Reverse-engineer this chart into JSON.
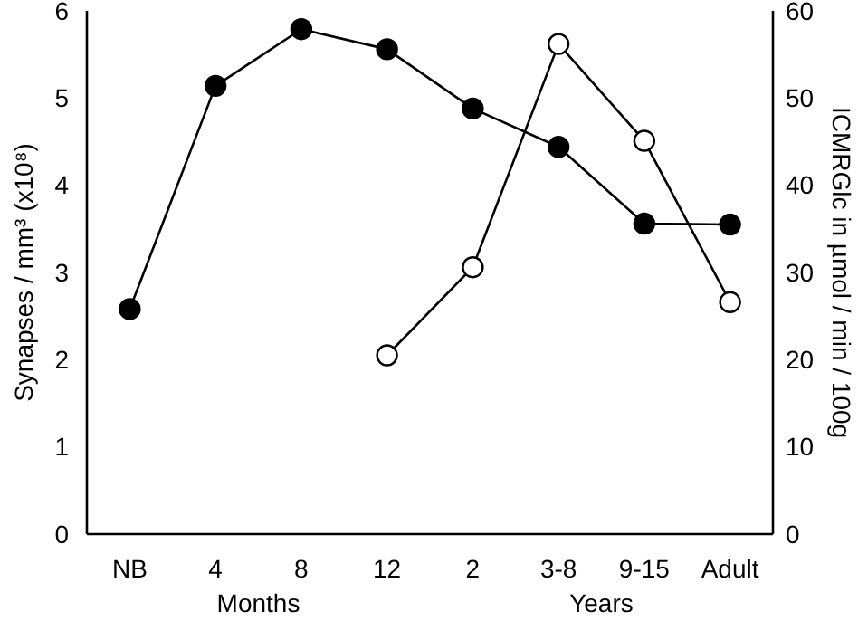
{
  "chart_data": {
    "type": "line",
    "categories": [
      "NB",
      "4",
      "8",
      "12",
      "2",
      "3-8",
      "9-15",
      "Adult"
    ],
    "ylabel": "Synapses / mm³ (x10⁸)",
    "y2label": "ICMRGlc in µmol / min / 100g",
    "annotations": [
      "Months",
      "Years"
    ],
    "ylim": [
      0,
      6
    ],
    "yticks": [
      0,
      1,
      2,
      3,
      4,
      5,
      6
    ],
    "y2lim": [
      0,
      60
    ],
    "y2ticks": [
      0,
      10,
      20,
      30,
      40,
      50,
      60
    ],
    "grid": false,
    "marker": "circle",
    "line_style": "solid",
    "series": [
      {
        "color": "#000000",
        "values": [
          2.58,
          5.14,
          5.79,
          5.56,
          4.88,
          4.44,
          3.56,
          3.55
        ]
      },
      {
        "color": "#ffffff",
        "axis": "y2",
        "values": [
          null,
          null,
          null,
          20.5,
          30.6,
          56.2,
          45.1,
          26.6
        ]
      }
    ]
  }
}
